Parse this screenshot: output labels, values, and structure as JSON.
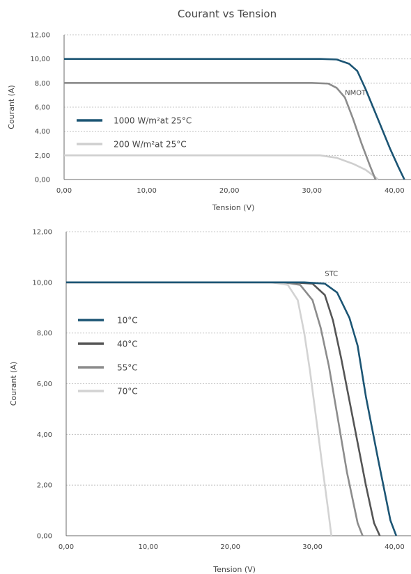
{
  "chart_data": [
    {
      "type": "line",
      "title": "Courant vs Tension",
      "xlabel": "Tension (V)",
      "ylabel": "Courant (A)",
      "xlim": [
        0,
        42
      ],
      "ylim": [
        0,
        12
      ],
      "xticks": [
        "0,00",
        "10,00",
        "20,00",
        "30,00",
        "40,00"
      ],
      "yticks": [
        "0,00",
        "2,00",
        "4,00",
        "6,00",
        "8,00",
        "10,00",
        "12,00"
      ],
      "grid": "horizontal dotted",
      "legend_position": "left",
      "annotations": [
        {
          "text": "NMOT",
          "x": 34,
          "y": 7.0
        }
      ],
      "series": [
        {
          "name": "1000 W/m²at 25°C",
          "color": "#1c5574",
          "points": [
            [
              0,
              10
            ],
            [
              31,
              10
            ],
            [
              33,
              9.95
            ],
            [
              34.5,
              9.6
            ],
            [
              35.5,
              9.0
            ],
            [
              36.5,
              7.5
            ],
            [
              38,
              5
            ],
            [
              39.5,
              2.5
            ],
            [
              40.5,
              1
            ],
            [
              41.2,
              0
            ]
          ]
        },
        {
          "name": "",
          "color": "#8c8c8c",
          "points": [
            [
              0,
              8
            ],
            [
              30,
              8
            ],
            [
              32,
              7.95
            ],
            [
              33,
              7.6
            ],
            [
              34,
              6.8
            ],
            [
              35,
              5
            ],
            [
              36,
              3
            ],
            [
              37,
              1.2
            ],
            [
              37.7,
              0
            ]
          ]
        },
        {
          "name": "200 W/m²at 25°C",
          "color": "#cfcfcf",
          "points": [
            [
              0,
              2
            ],
            [
              31,
              2
            ],
            [
              33,
              1.8
            ],
            [
              35,
              1.3
            ],
            [
              36.5,
              0.8
            ],
            [
              37.5,
              0.3
            ],
            [
              38,
              0
            ]
          ]
        }
      ]
    },
    {
      "type": "line",
      "title": "",
      "xlabel": "Tension (V)",
      "ylabel": "Courant (A)",
      "xlim": [
        0,
        42
      ],
      "ylim": [
        0,
        12
      ],
      "xticks": [
        "0,00",
        "10,00",
        "20,00",
        "30,00",
        "40,00"
      ],
      "yticks": [
        "0,00",
        "2,00",
        "4,00",
        "6,00",
        "8,00",
        "10,00",
        "12,00"
      ],
      "grid": "horizontal dotted",
      "legend_position": "left",
      "annotations": [
        {
          "text": "STC",
          "x": 31.5,
          "y": 10.25
        }
      ],
      "series": [
        {
          "name": "10°C",
          "color": "#1c5574",
          "points": [
            [
              0,
              10
            ],
            [
              29,
              10
            ],
            [
              31.5,
              9.95
            ],
            [
              33,
              9.6
            ],
            [
              34.5,
              8.6
            ],
            [
              35.5,
              7.5
            ],
            [
              36.5,
              5.5
            ],
            [
              38,
              3
            ],
            [
              39.5,
              0.6
            ],
            [
              40.2,
              0
            ]
          ]
        },
        {
          "name": "40°C",
          "color": "#555555",
          "points": [
            [
              0,
              10
            ],
            [
              27.5,
              10
            ],
            [
              30,
              9.95
            ],
            [
              31.5,
              9.5
            ],
            [
              32.5,
              8.5
            ],
            [
              33.5,
              7.0
            ],
            [
              35,
              4.5
            ],
            [
              36.5,
              2.0
            ],
            [
              37.5,
              0.5
            ],
            [
              38.2,
              0
            ]
          ]
        },
        {
          "name": "55°C",
          "color": "#8c8c8c",
          "points": [
            [
              0,
              10
            ],
            [
              26.5,
              10
            ],
            [
              28.5,
              9.9
            ],
            [
              30,
              9.3
            ],
            [
              31,
              8.2
            ],
            [
              32,
              6.7
            ],
            [
              33,
              4.8
            ],
            [
              34.2,
              2.5
            ],
            [
              35.5,
              0.5
            ],
            [
              36.1,
              0
            ]
          ]
        },
        {
          "name": "70°C",
          "color": "#d3d3d3",
          "points": [
            [
              0,
              10
            ],
            [
              25,
              10
            ],
            [
              27,
              9.9
            ],
            [
              28.2,
              9.3
            ],
            [
              29,
              8.0
            ],
            [
              29.7,
              6.5
            ],
            [
              30.5,
              4.5
            ],
            [
              31.3,
              2.5
            ],
            [
              32,
              0.8
            ],
            [
              32.3,
              0
            ]
          ]
        }
      ]
    }
  ]
}
